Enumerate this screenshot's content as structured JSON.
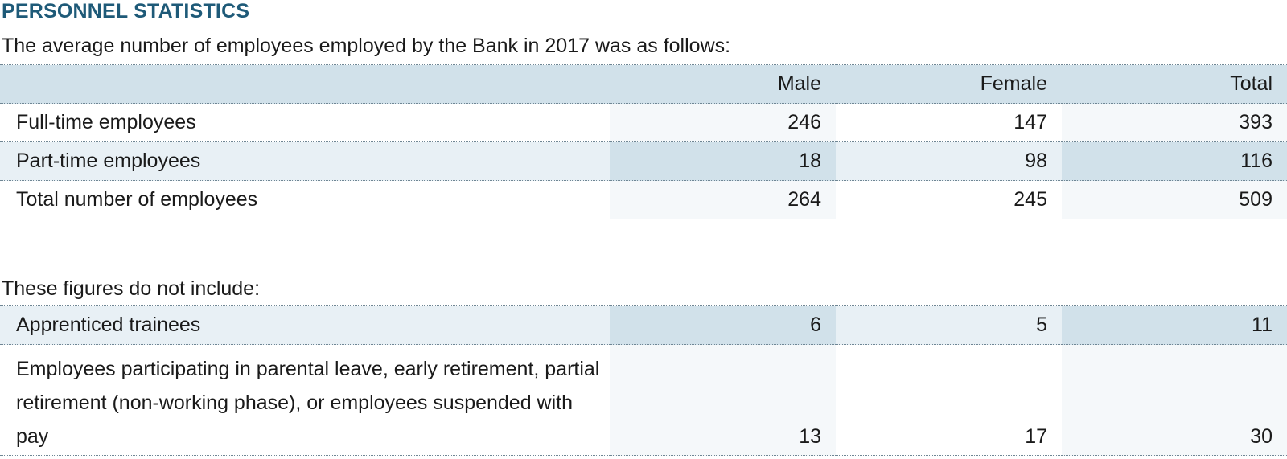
{
  "heading": "PERSONNEL STATISTICS",
  "intro": "The average number of employees employed by the Bank in 2017 was as follows:",
  "table_main": {
    "columns": [
      "",
      "Male",
      "Female",
      "Total"
    ],
    "rows": [
      {
        "label": "Full-time employees",
        "male": "246",
        "female": "147",
        "total": "393"
      },
      {
        "label": "Part-time employees",
        "male": "18",
        "female": "98",
        "total": "116"
      },
      {
        "label": "Total number of employees",
        "male": "264",
        "female": "245",
        "total": "509"
      }
    ]
  },
  "note": "These figures do not include:",
  "table_excluded": {
    "rows": [
      {
        "label": "Apprenticed trainees",
        "male": "6",
        "female": "5",
        "total": "11"
      },
      {
        "label": "Employees participating in parental leave, early retirement, partial retirement (non-working phase), or employees suspended with pay",
        "male": "13",
        "female": "17",
        "total": "30"
      }
    ]
  },
  "colors": {
    "heading": "#1e5a78",
    "header_band": "#d1e1ea",
    "light_band": "#e8f0f5"
  }
}
